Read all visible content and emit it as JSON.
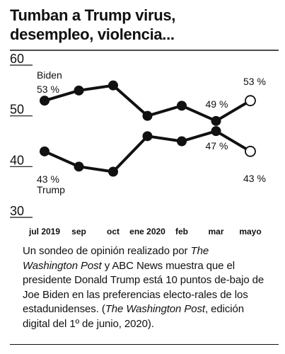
{
  "title": {
    "line1": "Tumban a Trump virus,",
    "line2": "desempleo, violencia..."
  },
  "chart_data": {
    "type": "line",
    "categories": [
      "jul 2019",
      "sep",
      "oct",
      "ene 2020",
      "feb",
      "mar",
      "mayo"
    ],
    "ylim": [
      30,
      60
    ],
    "yticks": [
      30,
      40,
      50,
      60
    ],
    "grid": false,
    "series": [
      {
        "name": "Biden",
        "values": [
          53,
          55,
          56,
          50,
          52,
          49,
          53
        ],
        "start_label": "53 %",
        "end_label": "53 %",
        "mid_label": "49 %",
        "mid_index": 5,
        "color": "#111111"
      },
      {
        "name": "Trump",
        "values": [
          43,
          40,
          39,
          46,
          45,
          47,
          43
        ],
        "start_label": "43 %",
        "end_label": "43 %",
        "mid_label": "47 %",
        "mid_index": 5,
        "color": "#111111"
      }
    ]
  },
  "caption": {
    "t1": "Un sondeo de opinión realizado por",
    "t2": "The Washington Post",
    "t3": " y ABC News muestra que el presidente Donald Trump está 10 puntos de-bajo de Joe Biden en las preferencias electo-rales de los estadunidenses. (",
    "t4": "The Washington Post",
    "t5": ", edición digital del 1º de junio, 2020)."
  }
}
